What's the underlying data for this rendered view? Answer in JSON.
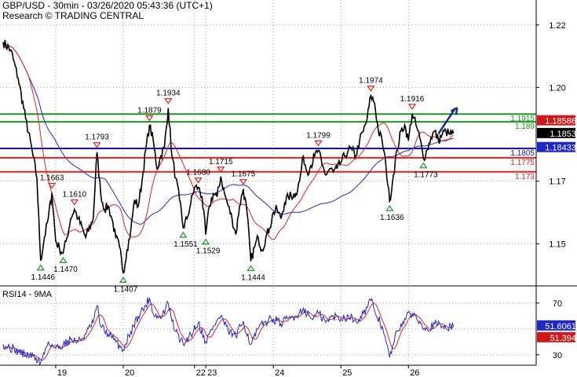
{
  "header": {
    "title": "GBP/USD - 30min - 03/26/2020 05:43:36 (UTC+1)",
    "subtitle": "Research © TRADING CENTRAL"
  },
  "colors": {
    "price": "#000000",
    "ma_fast": "#e8201c",
    "ma_slow": "#1e28c8",
    "resistance": "#18981c",
    "support": "#e8201c",
    "pivot": "#1010d0",
    "arrow": "#1a2a8a",
    "up_marker": "#18981c",
    "down_marker": "#e8201c",
    "grid": "#a0a0a0"
  },
  "chart_data": [
    {
      "type": "line",
      "name": "price-panel",
      "ylim": [
        1.137,
        1.228
      ],
      "yticks": [
        1.15,
        1.17,
        1.2,
        1.22
      ],
      "ytick_labels": [
        "1.15",
        "1.17",
        "1.20",
        "1.22"
      ],
      "x_labels": [
        {
          "label": "19",
          "i": 14
        },
        {
          "label": "20",
          "i": 32
        },
        {
          "label": "22",
          "i": 51
        },
        {
          "label": "23",
          "i": 54
        },
        {
          "label": "24",
          "i": 72
        },
        {
          "label": "25",
          "i": 90
        },
        {
          "label": "26",
          "i": 108
        }
      ],
      "x_count": 150,
      "price_anchors": [
        [
          0,
          1.2145
        ],
        [
          2,
          1.212
        ],
        [
          4,
          1.203
        ],
        [
          6,
          1.19
        ],
        [
          8,
          1.178
        ],
        [
          9,
          1.171
        ],
        [
          10,
          1.1446
        ],
        [
          11,
          1.152
        ],
        [
          12,
          1.158
        ],
        [
          13,
          1.1663
        ],
        [
          14,
          1.151
        ],
        [
          15,
          1.1485
        ],
        [
          16,
          1.147
        ],
        [
          17,
          1.152
        ],
        [
          18,
          1.158
        ],
        [
          19,
          1.161
        ],
        [
          20,
          1.158
        ],
        [
          22,
          1.152
        ],
        [
          24,
          1.158
        ],
        [
          25,
          1.1793
        ],
        [
          26,
          1.166
        ],
        [
          27,
          1.161
        ],
        [
          28,
          1.162
        ],
        [
          29,
          1.158
        ],
        [
          30,
          1.152
        ],
        [
          31,
          1.149
        ],
        [
          32,
          1.1407
        ],
        [
          33,
          1.148
        ],
        [
          34,
          1.154
        ],
        [
          35,
          1.164
        ],
        [
          36,
          1.162
        ],
        [
          37,
          1.17
        ],
        [
          38,
          1.18
        ],
        [
          39,
          1.1879
        ],
        [
          40,
          1.183
        ],
        [
          41,
          1.174
        ],
        [
          42,
          1.178
        ],
        [
          43,
          1.181
        ],
        [
          44,
          1.1934
        ],
        [
          45,
          1.178
        ],
        [
          46,
          1.171
        ],
        [
          47,
          1.164
        ],
        [
          48,
          1.1551
        ],
        [
          49,
          1.158
        ],
        [
          50,
          1.163
        ],
        [
          51,
          1.168
        ],
        [
          52,
          1.168
        ],
        [
          53,
          1.165
        ],
        [
          54,
          1.1529
        ],
        [
          55,
          1.162
        ],
        [
          56,
          1.166
        ],
        [
          57,
          1.165
        ],
        [
          58,
          1.1715
        ],
        [
          59,
          1.166
        ],
        [
          60,
          1.162
        ],
        [
          61,
          1.158
        ],
        [
          62,
          1.153
        ],
        [
          63,
          1.162
        ],
        [
          64,
          1.1675
        ],
        [
          65,
          1.16
        ],
        [
          66,
          1.1444
        ],
        [
          67,
          1.149
        ],
        [
          68,
          1.152
        ],
        [
          69,
          1.148
        ],
        [
          70,
          1.152
        ],
        [
          71,
          1.155
        ],
        [
          72,
          1.16
        ],
        [
          73,
          1.161
        ],
        [
          74,
          1.158
        ],
        [
          75,
          1.163
        ],
        [
          76,
          1.165
        ],
        [
          78,
          1.166
        ],
        [
          79,
          1.17
        ],
        [
          80,
          1.178
        ],
        [
          81,
          1.173
        ],
        [
          82,
          1.175
        ],
        [
          83,
          1.178
        ],
        [
          84,
          1.1799
        ],
        [
          85,
          1.175
        ],
        [
          86,
          1.172
        ],
        [
          87,
          1.174
        ],
        [
          88,
          1.173
        ],
        [
          89,
          1.174
        ],
        [
          90,
          1.176
        ],
        [
          91,
          1.178
        ],
        [
          92,
          1.18
        ],
        [
          93,
          1.18
        ],
        [
          94,
          1.178
        ],
        [
          95,
          1.183
        ],
        [
          96,
          1.186
        ],
        [
          97,
          1.19
        ],
        [
          98,
          1.1974
        ],
        [
          99,
          1.195
        ],
        [
          100,
          1.186
        ],
        [
          101,
          1.183
        ],
        [
          102,
          1.175
        ],
        [
          103,
          1.1636
        ],
        [
          104,
          1.172
        ],
        [
          105,
          1.18
        ],
        [
          106,
          1.186
        ],
        [
          107,
          1.188
        ],
        [
          108,
          1.183
        ],
        [
          109,
          1.1916
        ],
        [
          110,
          1.188
        ],
        [
          111,
          1.184
        ],
        [
          112,
          1.1773
        ],
        [
          113,
          1.18
        ],
        [
          114,
          1.184
        ],
        [
          115,
          1.186
        ],
        [
          116,
          1.183
        ],
        [
          117,
          1.185
        ],
        [
          118,
          1.186
        ],
        [
          119,
          1.185
        ],
        [
          120,
          1.1853
        ]
      ],
      "levels": [
        {
          "value": 1.1915,
          "label": "1.1915",
          "kind": "resistance"
        },
        {
          "value": 1.189,
          "label": "1.189",
          "kind": "resistance"
        },
        {
          "value": 1.1805,
          "label": "1.1805",
          "kind": "pivot"
        },
        {
          "value": 1.1775,
          "label": "1.1775",
          "kind": "support"
        },
        {
          "value": 1.173,
          "label": "1.173",
          "kind": "support"
        }
      ],
      "swing_labels": [
        {
          "i": 10,
          "value": 1.1446,
          "label": "1.1446",
          "dir": "low"
        },
        {
          "i": 13,
          "value": 1.1663,
          "label": "1.1663",
          "dir": "high"
        },
        {
          "i": 16,
          "value": 1.147,
          "label": "1.1470",
          "dir": "low"
        },
        {
          "i": 19,
          "value": 1.161,
          "label": "1.1610",
          "dir": "high"
        },
        {
          "i": 25,
          "value": 1.1793,
          "label": "1.1793",
          "dir": "high"
        },
        {
          "i": 32,
          "value": 1.1407,
          "label": "1.1407",
          "dir": "low"
        },
        {
          "i": 39,
          "value": 1.1879,
          "label": "1.1879",
          "dir": "high"
        },
        {
          "i": 44,
          "value": 1.1934,
          "label": "1.1934",
          "dir": "high"
        },
        {
          "i": 48,
          "value": 1.1551,
          "label": "1.1551",
          "dir": "low"
        },
        {
          "i": 52,
          "value": 1.168,
          "label": "1.1680",
          "dir": "high"
        },
        {
          "i": 54,
          "value": 1.1529,
          "label": "1.1529",
          "dir": "low"
        },
        {
          "i": 58,
          "value": 1.1715,
          "label": "1.1715",
          "dir": "high"
        },
        {
          "i": 64,
          "value": 1.1675,
          "label": "1.1675",
          "dir": "high"
        },
        {
          "i": 66,
          "value": 1.1444,
          "label": "1.1444",
          "dir": "low"
        },
        {
          "i": 84,
          "value": 1.1799,
          "label": "1.1799",
          "dir": "high"
        },
        {
          "i": 98,
          "value": 1.1974,
          "label": "1.1974",
          "dir": "high"
        },
        {
          "i": 103,
          "value": 1.1636,
          "label": "1.1636",
          "dir": "low"
        },
        {
          "i": 109,
          "value": 1.1916,
          "label": "1.1916",
          "dir": "high"
        },
        {
          "i": 112,
          "value": 1.1773,
          "label": "1.1773",
          "dir": "low"
        }
      ],
      "tags": [
        {
          "value": 1.18586,
          "label": "1.18586",
          "bg": "#d01818",
          "fg": "#ffffff"
        },
        {
          "value": 1.1853,
          "label": "1.1853",
          "bg": "#000000",
          "fg": "#ffffff"
        },
        {
          "value": 1.18433,
          "label": "1.18433",
          "bg": "#1e28c8",
          "fg": "#ffffff"
        }
      ],
      "forecast_arrow": {
        "from": [
          116,
          1.1852
        ],
        "to": [
          121,
          1.1935
        ]
      }
    },
    {
      "type": "line",
      "name": "rsi-panel",
      "title": "RSI14 - 9MA",
      "ylim": [
        22,
        82
      ],
      "yticks": [
        30,
        50,
        70
      ],
      "ytick_labels": [
        "30",
        "50",
        "70"
      ],
      "rsi_anchors": [
        [
          0,
          38
        ],
        [
          3,
          34
        ],
        [
          6,
          30
        ],
        [
          8,
          29
        ],
        [
          10,
          24
        ],
        [
          12,
          40
        ],
        [
          14,
          35
        ],
        [
          16,
          38
        ],
        [
          18,
          42
        ],
        [
          20,
          40
        ],
        [
          22,
          46
        ],
        [
          24,
          55
        ],
        [
          25,
          68
        ],
        [
          26,
          52
        ],
        [
          28,
          46
        ],
        [
          30,
          40
        ],
        [
          32,
          34
        ],
        [
          34,
          48
        ],
        [
          36,
          60
        ],
        [
          38,
          68
        ],
        [
          39,
          74
        ],
        [
          40,
          62
        ],
        [
          42,
          58
        ],
        [
          44,
          70
        ],
        [
          45,
          56
        ],
        [
          46,
          48
        ],
        [
          48,
          38
        ],
        [
          50,
          46
        ],
        [
          52,
          55
        ],
        [
          54,
          40
        ],
        [
          56,
          52
        ],
        [
          58,
          60
        ],
        [
          60,
          48
        ],
        [
          62,
          44
        ],
        [
          64,
          56
        ],
        [
          66,
          38
        ],
        [
          68,
          50
        ],
        [
          70,
          56
        ],
        [
          72,
          58
        ],
        [
          74,
          54
        ],
        [
          76,
          58
        ],
        [
          78,
          60
        ],
        [
          80,
          66
        ],
        [
          82,
          58
        ],
        [
          84,
          62
        ],
        [
          86,
          55
        ],
        [
          88,
          60
        ],
        [
          90,
          58
        ],
        [
          92,
          60
        ],
        [
          94,
          56
        ],
        [
          96,
          62
        ],
        [
          98,
          72
        ],
        [
          99,
          64
        ],
        [
          101,
          52
        ],
        [
          103,
          28
        ],
        [
          105,
          48
        ],
        [
          107,
          58
        ],
        [
          109,
          62
        ],
        [
          111,
          56
        ],
        [
          113,
          50
        ],
        [
          115,
          54
        ],
        [
          117,
          52
        ],
        [
          120,
          51.6
        ]
      ],
      "tags": [
        {
          "value": 51.6061,
          "label": "51.6061",
          "bg": "#1e28c8",
          "fg": "#ffffff"
        },
        {
          "value": 51.394,
          "label": "51.394",
          "bg": "#d01818",
          "fg": "#ffffff"
        }
      ]
    }
  ]
}
